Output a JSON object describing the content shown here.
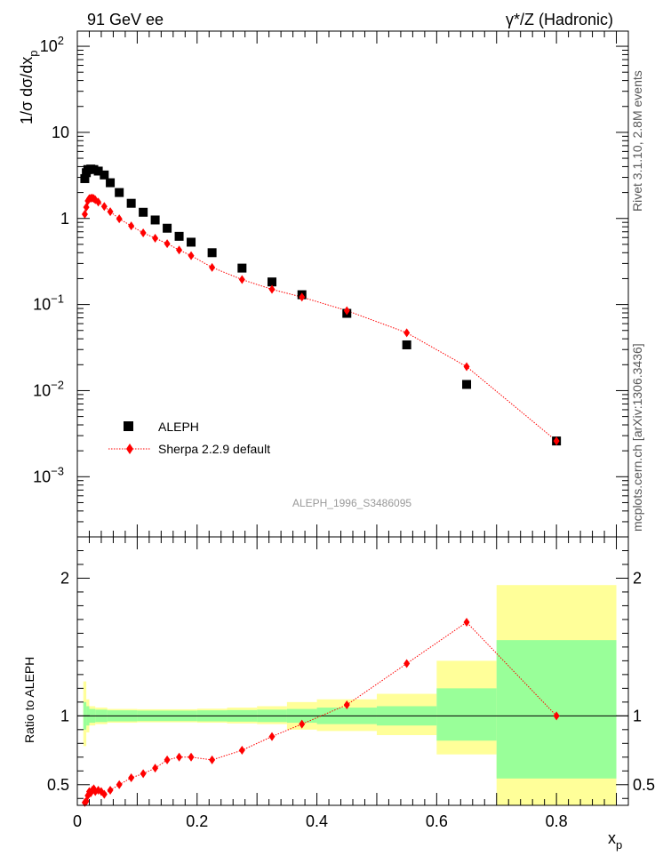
{
  "header": {
    "left": "91 GeV ee",
    "right": "γ*/Z (Hadronic)"
  },
  "side": {
    "rivet": "Rivet 3.1.10,  2.8M events",
    "mcplots": "mcplots.cern.ch [arXiv:1306.3436]"
  },
  "chart_data": [
    {
      "type": "scatter",
      "title": "",
      "watermark": "ALEPH_1996_S3486095",
      "xlabel": "x",
      "xlabel_sub": "p",
      "ylabel": "1/σ dσ/dx",
      "ylabel_sub": "p",
      "xlim": [
        0,
        0.92
      ],
      "ylim": [
        0.0002,
        150
      ],
      "yscale": "log",
      "y_ticks": [
        {
          "value": 100,
          "base": "10",
          "exp": "2"
        },
        {
          "value": 10,
          "base": "10",
          "exp": ""
        },
        {
          "value": 1,
          "base": "1",
          "exp": ""
        },
        {
          "value": 0.1,
          "base": "10",
          "exp": "−1"
        },
        {
          "value": 0.01,
          "base": "10",
          "exp": "−2"
        },
        {
          "value": 0.001,
          "base": "10",
          "exp": "−3"
        }
      ],
      "legend": [
        {
          "name": "ALEPH",
          "marker": "square",
          "color": "#000000"
        },
        {
          "name": "Sherpa 2.2.9 default",
          "marker": "diamond",
          "color": "#ff0000"
        }
      ],
      "legend_position": "bottom-left",
      "series": [
        {
          "name": "ALEPH",
          "x": [
            0.0125,
            0.015,
            0.0175,
            0.0225,
            0.0275,
            0.035,
            0.045,
            0.055,
            0.07,
            0.09,
            0.11,
            0.13,
            0.15,
            0.17,
            0.19,
            0.225,
            0.275,
            0.325,
            0.375,
            0.45,
            0.55,
            0.65,
            0.8
          ],
          "y": [
            2.9,
            3.4,
            3.7,
            3.75,
            3.7,
            3.55,
            3.2,
            2.6,
            2.0,
            1.5,
            1.18,
            0.96,
            0.77,
            0.62,
            0.53,
            0.4,
            0.265,
            0.183,
            0.13,
            0.079,
            0.034,
            0.0118,
            0.0026
          ]
        },
        {
          "name": "Sherpa 2.2.9 default",
          "x": [
            0.0125,
            0.015,
            0.0175,
            0.02,
            0.0225,
            0.025,
            0.0275,
            0.03,
            0.035,
            0.045,
            0.055,
            0.07,
            0.09,
            0.11,
            0.13,
            0.15,
            0.17,
            0.19,
            0.225,
            0.275,
            0.325,
            0.375,
            0.45,
            0.55,
            0.65,
            0.8
          ],
          "y": [
            1.12,
            1.35,
            1.6,
            1.7,
            1.72,
            1.73,
            1.7,
            1.65,
            1.55,
            1.38,
            1.2,
            0.99,
            0.82,
            0.68,
            0.59,
            0.51,
            0.43,
            0.37,
            0.27,
            0.195,
            0.15,
            0.122,
            0.085,
            0.047,
            0.019,
            0.0026
          ]
        }
      ]
    },
    {
      "type": "line",
      "ylabel": "Ratio to ALEPH",
      "xlim": [
        0,
        0.92
      ],
      "ylim": [
        0.35,
        2.3
      ],
      "x_ticks": [
        "0",
        "0.2",
        "0.4",
        "0.6",
        "0.8"
      ],
      "y_ticks": [
        "0.5",
        "1",
        "2"
      ],
      "bands": {
        "bins": [
          [
            0.01,
            0.015
          ],
          [
            0.015,
            0.02
          ],
          [
            0.02,
            0.03
          ],
          [
            0.03,
            0.05
          ],
          [
            0.05,
            0.1
          ],
          [
            0.1,
            0.2
          ],
          [
            0.2,
            0.25
          ],
          [
            0.25,
            0.3
          ],
          [
            0.3,
            0.35
          ],
          [
            0.35,
            0.4
          ],
          [
            0.4,
            0.5
          ],
          [
            0.5,
            0.6
          ],
          [
            0.6,
            0.7
          ],
          [
            0.7,
            0.9
          ]
        ],
        "stat_low": [
          0.9,
          0.93,
          0.95,
          0.955,
          0.96,
          0.962,
          0.96,
          0.958,
          0.955,
          0.95,
          0.94,
          0.93,
          0.82,
          0.545
        ],
        "stat_high": [
          1.1,
          1.07,
          1.05,
          1.045,
          1.04,
          1.038,
          1.04,
          1.042,
          1.045,
          1.05,
          1.06,
          1.07,
          1.2,
          1.55
        ],
        "total_low": [
          0.78,
          0.88,
          0.93,
          0.94,
          0.95,
          0.953,
          0.95,
          0.945,
          0.94,
          0.9,
          0.89,
          0.86,
          0.72,
          0.35
        ],
        "total_high": [
          1.25,
          1.12,
          1.07,
          1.06,
          1.05,
          1.048,
          1.052,
          1.06,
          1.07,
          1.1,
          1.12,
          1.16,
          1.4,
          1.95
        ]
      },
      "series": [
        {
          "name": "Sherpa 2.2.9 default / ALEPH",
          "x": [
            0.0125,
            0.015,
            0.0175,
            0.02,
            0.0225,
            0.025,
            0.0275,
            0.03,
            0.035,
            0.04,
            0.045,
            0.055,
            0.07,
            0.09,
            0.11,
            0.13,
            0.15,
            0.17,
            0.19,
            0.225,
            0.275,
            0.325,
            0.375,
            0.45,
            0.55,
            0.65,
            0.8
          ],
          "y": [
            0.37,
            0.38,
            0.42,
            0.45,
            0.44,
            0.46,
            0.47,
            0.45,
            0.46,
            0.45,
            0.43,
            0.46,
            0.5,
            0.55,
            0.58,
            0.62,
            0.68,
            0.7,
            0.7,
            0.68,
            0.75,
            0.85,
            0.94,
            1.08,
            1.38,
            1.68,
            1.0
          ]
        }
      ]
    }
  ]
}
